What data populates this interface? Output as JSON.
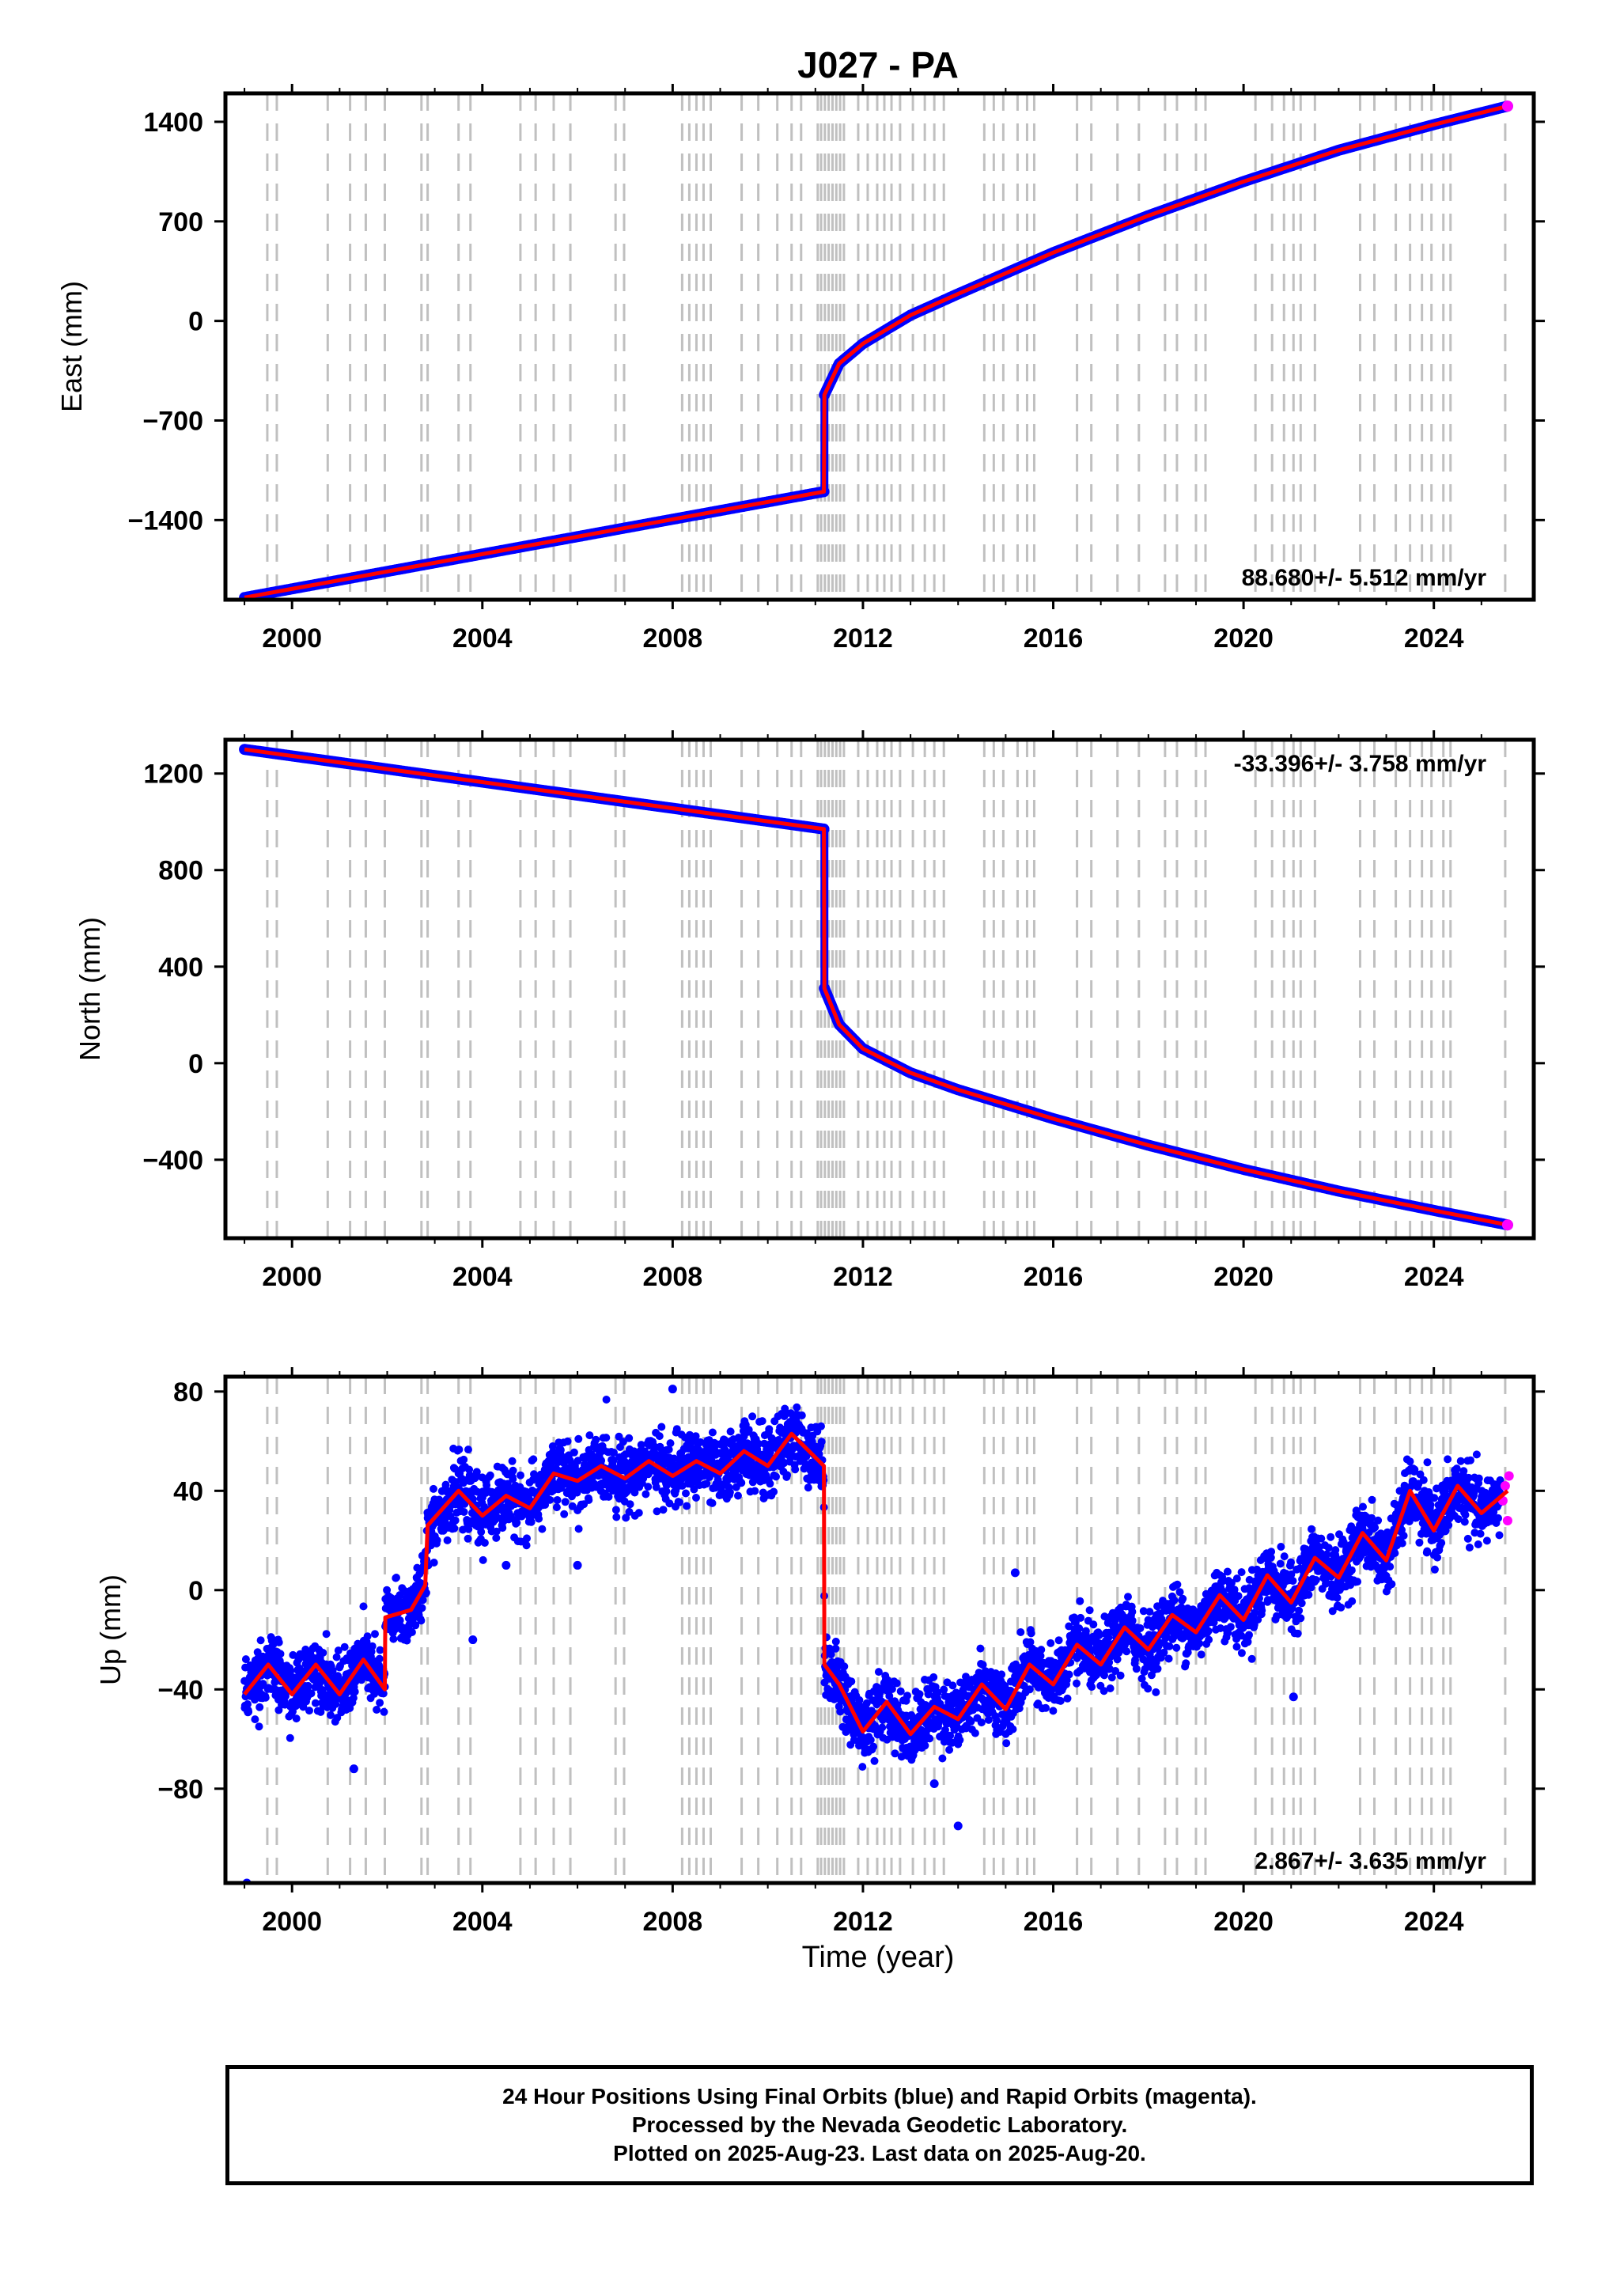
{
  "figure": {
    "title": "J027 - PA",
    "xlabel": "Time (year)",
    "caption": [
      "24 Hour Positions Using Final Orbits (blue) and Rapid Orbits (magenta).",
      "Processed by the Nevada Geodetic Laboratory.",
      "Plotted on 2025-Aug-23. Last data on 2025-Aug-20."
    ]
  },
  "colors": {
    "final_orbits": "#0000ff",
    "rapid_orbits": "#ff00ff",
    "model_fit": "#ff0000",
    "equipment_change_lines": "#c0c0c0",
    "frame": "#000000"
  },
  "chart_data": [
    {
      "type": "scatter",
      "id": "east",
      "ylabel": "East (mm)",
      "rate_label": "88.680+/- 5.512 mm/yr",
      "rate_position": "bottom-right",
      "xlim": [
        1998.6,
        2026.1
      ],
      "ylim": [
        -1960,
        1600
      ],
      "xticks": [
        2000,
        2004,
        2008,
        2012,
        2016,
        2020,
        2024
      ],
      "yticks": [
        1400,
        700,
        0,
        -700,
        -1400
      ],
      "ytick_labels": [
        "1400",
        "700",
        "0",
        "−700",
        "−1400"
      ],
      "series": [
        {
          "name": "Final Orbits",
          "role": "daily positions",
          "points": [
            [
              1999.0,
              -1945
            ],
            [
              2000.0,
              -1870
            ],
            [
              2002.0,
              -1730
            ],
            [
              2004.0,
              -1600
            ],
            [
              2006.0,
              -1480
            ],
            [
              2008.0,
              -1370
            ],
            [
              2010.0,
              -1270
            ],
            [
              2011.18,
              -1200
            ],
            [
              2011.19,
              -520
            ],
            [
              2011.5,
              -300
            ],
            [
              2012.0,
              -160
            ],
            [
              2013.0,
              40
            ],
            [
              2014.0,
              190
            ],
            [
              2016.0,
              480
            ],
            [
              2018.0,
              740
            ],
            [
              2020.0,
              980
            ],
            [
              2022.0,
              1200
            ],
            [
              2024.0,
              1380
            ],
            [
              2025.55,
              1510
            ]
          ]
        },
        {
          "name": "Model fit",
          "role": "red trend line",
          "points": [
            [
              1999.0,
              -1945
            ],
            [
              2011.18,
              -1200
            ],
            [
              2011.19,
              -520
            ],
            [
              2011.5,
              -300
            ],
            [
              2012.0,
              -160
            ],
            [
              2013.0,
              40
            ],
            [
              2014.0,
              190
            ],
            [
              2016.0,
              480
            ],
            [
              2018.0,
              740
            ],
            [
              2020.0,
              980
            ],
            [
              2022.0,
              1200
            ],
            [
              2024.0,
              1380
            ],
            [
              2025.55,
              1510
            ]
          ]
        }
      ],
      "event_lines_year": [
        1999.48,
        1999.68,
        2000.75,
        2001.22,
        2001.55,
        2001.95,
        2002.72,
        2002.85,
        2003.5,
        2003.75,
        2004.8,
        2005.12,
        2005.5,
        2005.85,
        2006.8,
        2006.98,
        2008.2,
        2008.35,
        2008.5,
        2008.65,
        2008.8,
        2009.45,
        2009.8,
        2010.2,
        2010.5,
        2010.7,
        2011.05,
        2011.12,
        2011.2,
        2011.28,
        2011.36,
        2011.44,
        2011.52,
        2011.6,
        2011.9,
        2012.1,
        2012.3,
        2012.45,
        2012.6,
        2012.78,
        2013.05,
        2013.3,
        2013.5,
        2013.7,
        2014.55,
        2014.75,
        2014.95,
        2015.25,
        2015.45,
        2015.6,
        2016.5,
        2016.8,
        2017.35,
        2017.8,
        2018.35,
        2018.6,
        2019.0,
        2019.2,
        2020.25,
        2020.6,
        2020.85,
        2021.05,
        2021.2,
        2021.5,
        2022.45,
        2022.75,
        2023.2,
        2023.5,
        2023.75,
        2023.95,
        2024.2,
        2024.35,
        2025.5
      ]
    },
    {
      "type": "scatter",
      "id": "north",
      "ylabel": "North (mm)",
      "rate_label": "-33.396+/- 3.758 mm/yr",
      "rate_position": "top-right",
      "xlim": [
        1998.6,
        2026.1
      ],
      "ylim": [
        -725,
        1340
      ],
      "xticks": [
        2000,
        2004,
        2008,
        2012,
        2016,
        2020,
        2024
      ],
      "yticks": [
        1200,
        800,
        400,
        0,
        -400
      ],
      "ytick_labels": [
        "1200",
        "800",
        "400",
        "0",
        "−400"
      ],
      "series": [
        {
          "name": "Final Orbits",
          "role": "daily positions",
          "points": [
            [
              1999.0,
              1300
            ],
            [
              2000.0,
              1275
            ],
            [
              2002.0,
              1230
            ],
            [
              2004.0,
              1180
            ],
            [
              2006.0,
              1120
            ],
            [
              2008.0,
              1060
            ],
            [
              2010.0,
              1010
            ],
            [
              2011.18,
              970
            ],
            [
              2011.19,
              310
            ],
            [
              2011.5,
              160
            ],
            [
              2012.0,
              60
            ],
            [
              2013.0,
              -40
            ],
            [
              2014.0,
              -110
            ],
            [
              2016.0,
              -230
            ],
            [
              2018.0,
              -340
            ],
            [
              2020.0,
              -440
            ],
            [
              2022.0,
              -530
            ],
            [
              2024.0,
              -610
            ],
            [
              2025.55,
              -670
            ]
          ]
        },
        {
          "name": "Model fit",
          "role": "red trend line",
          "points": [
            [
              1999.0,
              1300
            ],
            [
              2011.18,
              970
            ],
            [
              2011.19,
              310
            ],
            [
              2011.5,
              160
            ],
            [
              2012.0,
              60
            ],
            [
              2013.0,
              -40
            ],
            [
              2014.0,
              -110
            ],
            [
              2016.0,
              -230
            ],
            [
              2018.0,
              -340
            ],
            [
              2020.0,
              -440
            ],
            [
              2022.0,
              -530
            ],
            [
              2024.0,
              -610
            ],
            [
              2025.55,
              -670
            ]
          ]
        }
      ],
      "event_lines_year": [
        1999.48,
        1999.68,
        2000.75,
        2001.22,
        2001.55,
        2001.95,
        2002.72,
        2002.85,
        2003.5,
        2003.75,
        2004.8,
        2005.12,
        2005.5,
        2005.85,
        2006.8,
        2006.98,
        2008.2,
        2008.35,
        2008.5,
        2008.65,
        2008.8,
        2009.45,
        2009.8,
        2010.2,
        2010.5,
        2010.7,
        2011.05,
        2011.12,
        2011.2,
        2011.28,
        2011.36,
        2011.44,
        2011.52,
        2011.6,
        2011.9,
        2012.1,
        2012.3,
        2012.45,
        2012.6,
        2012.78,
        2013.05,
        2013.3,
        2013.5,
        2013.7,
        2014.55,
        2014.75,
        2014.95,
        2015.25,
        2015.45,
        2015.6,
        2016.5,
        2016.8,
        2017.35,
        2017.8,
        2018.35,
        2018.6,
        2019.0,
        2019.2,
        2020.25,
        2020.6,
        2020.85,
        2021.05,
        2021.2,
        2021.5,
        2022.45,
        2022.75,
        2023.2,
        2023.5,
        2023.75,
        2023.95,
        2024.2,
        2024.35,
        2025.5
      ]
    },
    {
      "type": "scatter",
      "id": "up",
      "ylabel": "Up (mm)",
      "rate_label": "2.867+/- 3.635 mm/yr",
      "rate_position": "bottom-right",
      "xlabel": "Time (year)",
      "xlim": [
        1998.6,
        2026.1
      ],
      "ylim": [
        -118,
        86
      ],
      "xticks": [
        2000,
        2004,
        2008,
        2012,
        2016,
        2020,
        2024
      ],
      "yticks": [
        80,
        40,
        0,
        -40,
        -80
      ],
      "ytick_labels": [
        "80",
        "40",
        "0",
        "−40",
        "−80"
      ],
      "series": [
        {
          "name": "Model fit",
          "role": "red seasonal trend line",
          "points": [
            [
              1999.0,
              -42
            ],
            [
              1999.5,
              -30
            ],
            [
              2000.0,
              -42
            ],
            [
              2000.5,
              -30
            ],
            [
              2001.0,
              -42
            ],
            [
              2001.5,
              -28
            ],
            [
              2001.95,
              -40
            ],
            [
              2001.96,
              -11
            ],
            [
              2002.5,
              -8
            ],
            [
              2002.8,
              2
            ],
            [
              2002.85,
              26
            ],
            [
              2003.5,
              40
            ],
            [
              2004.0,
              30
            ],
            [
              2004.5,
              38
            ],
            [
              2005.0,
              33
            ],
            [
              2005.5,
              47
            ],
            [
              2006.0,
              44
            ],
            [
              2006.5,
              50
            ],
            [
              2007.0,
              45
            ],
            [
              2007.5,
              52
            ],
            [
              2008.0,
              46
            ],
            [
              2008.5,
              52
            ],
            [
              2009.0,
              47
            ],
            [
              2009.5,
              56
            ],
            [
              2010.0,
              50
            ],
            [
              2010.5,
              63
            ],
            [
              2011.18,
              50
            ],
            [
              2011.19,
              -30
            ],
            [
              2011.5,
              -38
            ],
            [
              2012.0,
              -57
            ],
            [
              2012.5,
              -45
            ],
            [
              2013.0,
              -58
            ],
            [
              2013.5,
              -47
            ],
            [
              2014.0,
              -52
            ],
            [
              2014.5,
              -38
            ],
            [
              2015.0,
              -48
            ],
            [
              2015.5,
              -30
            ],
            [
              2016.0,
              -38
            ],
            [
              2016.5,
              -22
            ],
            [
              2017.0,
              -30
            ],
            [
              2017.5,
              -15
            ],
            [
              2018.0,
              -24
            ],
            [
              2018.5,
              -10
            ],
            [
              2019.0,
              -17
            ],
            [
              2019.5,
              -2
            ],
            [
              2020.0,
              -12
            ],
            [
              2020.5,
              6
            ],
            [
              2021.0,
              -5
            ],
            [
              2021.5,
              13
            ],
            [
              2022.0,
              5
            ],
            [
              2022.5,
              23
            ],
            [
              2023.0,
              12
            ],
            [
              2023.5,
              40
            ],
            [
              2024.0,
              24
            ],
            [
              2024.5,
              42
            ],
            [
              2025.0,
              31
            ],
            [
              2025.55,
              40
            ]
          ]
        },
        {
          "name": "Rapid Orbits",
          "role": "recent daily positions",
          "points": [
            [
              2025.45,
              36
            ],
            [
              2025.5,
              42
            ],
            [
              2025.55,
              28
            ],
            [
              2025.58,
              46
            ]
          ]
        }
      ],
      "outliers": [
        [
          1999.05,
          -118
        ],
        [
          2014.0,
          -95
        ],
        [
          2013.5,
          -78
        ],
        [
          2001.3,
          -72
        ],
        [
          2008.0,
          81
        ],
        [
          2006.0,
          10
        ],
        [
          2004.5,
          10
        ],
        [
          2003.8,
          -20
        ],
        [
          2021.05,
          -43
        ],
        [
          2015.2,
          7
        ]
      ],
      "event_lines_year": [
        1999.48,
        1999.68,
        2000.75,
        2001.22,
        2001.55,
        2001.95,
        2002.72,
        2002.85,
        2003.5,
        2003.75,
        2004.8,
        2005.12,
        2005.5,
        2005.85,
        2006.8,
        2006.98,
        2008.2,
        2008.35,
        2008.5,
        2008.65,
        2008.8,
        2009.45,
        2009.8,
        2010.2,
        2010.5,
        2010.7,
        2011.05,
        2011.12,
        2011.2,
        2011.28,
        2011.36,
        2011.44,
        2011.52,
        2011.6,
        2011.9,
        2012.1,
        2012.3,
        2012.45,
        2012.6,
        2012.78,
        2013.05,
        2013.3,
        2013.5,
        2013.7,
        2014.55,
        2014.75,
        2014.95,
        2015.25,
        2015.45,
        2015.6,
        2016.5,
        2016.8,
        2017.35,
        2017.8,
        2018.35,
        2018.6,
        2019.0,
        2019.2,
        2020.25,
        2020.6,
        2020.85,
        2021.05,
        2021.2,
        2021.5,
        2022.45,
        2022.75,
        2023.2,
        2023.5,
        2023.75,
        2023.95,
        2024.2,
        2024.35,
        2025.5
      ]
    }
  ]
}
